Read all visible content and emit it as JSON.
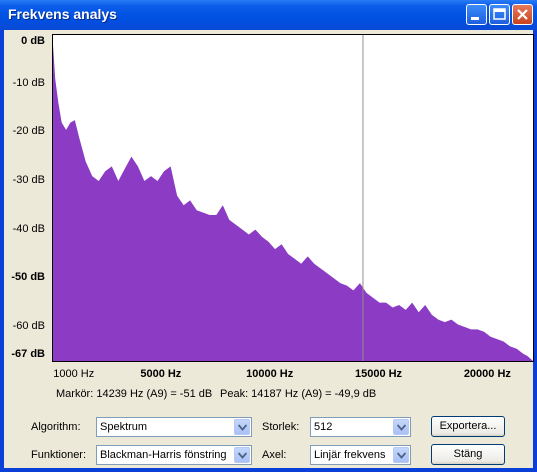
{
  "window": {
    "title": "Frekvens analys"
  },
  "chart_data": {
    "type": "area",
    "title": "",
    "xlabel": "",
    "ylabel": "",
    "xlim": [
      0,
      22050
    ],
    "ylim": [
      -67,
      0
    ],
    "fill_color": "#8B3BC4",
    "cursor_x": 14239,
    "y_ticks": [
      {
        "value": 0,
        "label": "0 dB",
        "bold": true
      },
      {
        "value": -10,
        "label": "-10 dB",
        "bold": false
      },
      {
        "value": -20,
        "label": "-20 dB",
        "bold": false
      },
      {
        "value": -30,
        "label": "-30 dB",
        "bold": false
      },
      {
        "value": -40,
        "label": "-40 dB",
        "bold": false
      },
      {
        "value": -50,
        "label": "-50 dB",
        "bold": true
      },
      {
        "value": -60,
        "label": "-60 dB",
        "bold": false
      },
      {
        "value": -67,
        "label": "-67 dB",
        "bold": true
      }
    ],
    "x_ticks": [
      {
        "value": 1000,
        "label": "1000 Hz",
        "bold": false
      },
      {
        "value": 5000,
        "label": "5000 Hz",
        "bold": true
      },
      {
        "value": 10000,
        "label": "10000 Hz",
        "bold": true
      },
      {
        "value": 15000,
        "label": "15000 Hz",
        "bold": true
      },
      {
        "value": 20000,
        "label": "20000 Hz",
        "bold": true
      }
    ],
    "x": [
      0,
      100,
      250,
      400,
      600,
      800,
      1000,
      1200,
      1500,
      1800,
      2100,
      2400,
      2700,
      3000,
      3300,
      3600,
      3900,
      4200,
      4500,
      4800,
      5100,
      5400,
      5700,
      6000,
      6300,
      6600,
      6900,
      7200,
      7500,
      7800,
      8100,
      8400,
      8700,
      9000,
      9300,
      9600,
      9900,
      10200,
      10500,
      10800,
      11100,
      11400,
      11700,
      12000,
      12300,
      12600,
      12900,
      13200,
      13500,
      13800,
      14100,
      14400,
      14700,
      15000,
      15300,
      15600,
      15900,
      16200,
      16500,
      16800,
      17100,
      17400,
      17700,
      18000,
      18300,
      18600,
      18900,
      19200,
      19500,
      19800,
      20100,
      20400,
      20700,
      21000,
      21300,
      21600,
      21800,
      22050
    ],
    "y": [
      -2,
      -9,
      -14,
      -18,
      -19.5,
      -18,
      -17.5,
      -21,
      -26,
      -29,
      -30,
      -28,
      -27,
      -30,
      -27.5,
      -25,
      -27,
      -30,
      -29,
      -30,
      -28,
      -27,
      -33,
      -35,
      -34,
      -36,
      -36.5,
      -37,
      -37,
      -35,
      -38,
      -39,
      -40,
      -41,
      -40,
      -41.5,
      -42.5,
      -44,
      -43,
      -45,
      -46,
      -47,
      -45.5,
      -47,
      -48,
      -49,
      -50,
      -51,
      -51.5,
      -52.5,
      -51,
      -53,
      -54,
      -55,
      -55,
      -56,
      -55.5,
      -56.5,
      -55,
      -57,
      -55.5,
      -57.5,
      -58.5,
      -59,
      -58.5,
      -59.5,
      -60,
      -60.5,
      -60.5,
      -61,
      -62,
      -62.5,
      -63,
      -64,
      -64.5,
      -65.5,
      -66,
      -67
    ]
  },
  "status": {
    "marker": "Markör: 14239 Hz (A9) = -51 dB",
    "peak": "Peak: 14187 Hz (A9) = -49,9 dB"
  },
  "controls": {
    "algorithm_label": "Algorithm:",
    "algorithm_value": "Spektrum",
    "functions_label": "Funktioner:",
    "functions_value": "Blackman-Harris fönstring",
    "size_label": "Storlek:",
    "size_value": "512",
    "axis_label": "Axel:",
    "axis_value": "Linjär frekvens",
    "export_label": "Exportera...",
    "close_label": "Stäng"
  }
}
